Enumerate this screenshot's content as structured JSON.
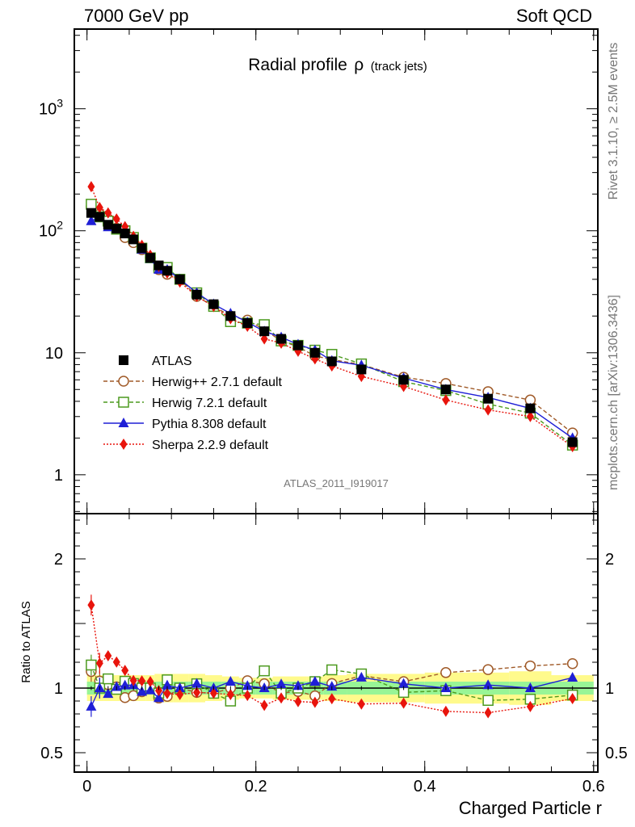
{
  "header": {
    "left": "7000 GeV pp",
    "right": "Soft QCD"
  },
  "side": {
    "rivet": "Rivet 3.1.10, ≥ 2.5M events",
    "mcplots": "mcplots.cern.ch [arXiv:1306.3436]"
  },
  "plot": {
    "title_main": "Radial profile",
    "title_rho": "ρ",
    "title_sub": "(track jets)",
    "watermark": "ATLAS_2011_I919017",
    "ratio_ylabel": "Ratio to ATLAS",
    "xlabel": "Charged Particle r"
  },
  "chart_data": {
    "type": "scatter",
    "title": "Radial profile ρ (track jets)",
    "xlabel": "Charged Particle r",
    "ylabel": "",
    "xlim": [
      -0.015,
      0.605
    ],
    "ylim": [
      0.48,
      4500
    ],
    "yscale": "log",
    "ratio_ylabel": "Ratio to ATLAS",
    "ratio_ylim": [
      0.35,
      2.35
    ],
    "x": [
      0.005,
      0.015,
      0.025,
      0.035,
      0.045,
      0.055,
      0.065,
      0.075,
      0.085,
      0.095,
      0.11,
      0.13,
      0.15,
      0.17,
      0.19,
      0.21,
      0.23,
      0.25,
      0.27,
      0.29,
      0.325,
      0.375,
      0.425,
      0.475,
      0.525,
      0.575
    ],
    "x_ticks": [
      {
        "v": 0,
        "label": "0"
      },
      {
        "v": 0.2,
        "label": "0.2"
      },
      {
        "v": 0.4,
        "label": "0.4"
      },
      {
        "v": 0.6,
        "label": "0.6"
      }
    ],
    "y_ticks": [
      {
        "v": 1,
        "label": "1",
        "sup": ""
      },
      {
        "v": 10,
        "label": "10",
        "sup": ""
      },
      {
        "v": 100,
        "label": "10",
        "sup": "2"
      },
      {
        "v": 1000,
        "label": "10",
        "sup": "3"
      }
    ],
    "ratio_ticks": [
      {
        "v": 0.5,
        "label": "0.5"
      },
      {
        "v": 1,
        "label": "1"
      },
      {
        "v": 2,
        "label": "2"
      }
    ],
    "legend_position": "middle-left",
    "series": [
      {
        "name": "ATLAS",
        "key": "atlas",
        "color": "#000000",
        "marker": "square-filled",
        "line": "none",
        "values": [
          140,
          130,
          112,
          104,
          95,
          85,
          72,
          60,
          52,
          47,
          40,
          30,
          25,
          20,
          17.5,
          15,
          13,
          11.5,
          10,
          8.5,
          7.3,
          6.0,
          5.0,
          4.2,
          3.5,
          1.85
        ],
        "band_inner": [
          0.05,
          0.05,
          0.05,
          0.05,
          0.05,
          0.05,
          0.05,
          0.05,
          0.05,
          0.05,
          0.05,
          0.05,
          0.05,
          0.05,
          0.05,
          0.05,
          0.05,
          0.05,
          0.05,
          0.05,
          0.05,
          0.05,
          0.05,
          0.05,
          0.05,
          0.05
        ],
        "band_outer": [
          0.1,
          0.1,
          0.1,
          0.1,
          0.1,
          0.1,
          0.1,
          0.1,
          0.11,
          0.11,
          0.11,
          0.11,
          0.1,
          0.09,
          0.08,
          0.08,
          0.09,
          0.09,
          0.09,
          0.1,
          0.11,
          0.11,
          0.12,
          0.12,
          0.13,
          0.1
        ]
      },
      {
        "name": "Herwig++ 2.7.1 default",
        "key": "herwigpp",
        "color": "#a05a28",
        "marker": "circle-open",
        "line": "dashed",
        "values": [
          158,
          137,
          115,
          105,
          88,
          80,
          70,
          60,
          48,
          44,
          40,
          29,
          24,
          20,
          18.5,
          15.5,
          12.5,
          11.2,
          9.4,
          8.8,
          8.0,
          6.3,
          5.6,
          4.8,
          4.1,
          2.2
        ]
      },
      {
        "name": "Herwig 7.2.1 default",
        "key": "herwig7",
        "color": "#4c9a1e",
        "marker": "square-open",
        "line": "dashed",
        "values": [
          165,
          130,
          120,
          103,
          100,
          88,
          72,
          60,
          50,
          50,
          40,
          31,
          24,
          18,
          17.5,
          17,
          12.5,
          11.5,
          10.5,
          9.7,
          8.1,
          5.8,
          4.9,
          3.8,
          3.2,
          1.75
        ]
      },
      {
        "name": "Pythia 8.308 default",
        "key": "pythia",
        "color": "#1f1fd6",
        "marker": "triangle-filled",
        "line": "solid",
        "values": [
          120,
          130,
          107,
          105,
          97,
          87,
          70,
          59,
          48,
          48,
          40,
          31,
          25,
          21,
          17.8,
          15,
          13.4,
          11.7,
          10.5,
          8.6,
          7.9,
          6.2,
          5.0,
          4.3,
          3.5,
          2.0
        ]
      },
      {
        "name": "Sherpa 2.2.9 default",
        "key": "sherpa",
        "color": "#e8140c",
        "marker": "diamond-filled",
        "line": "dotted",
        "values": [
          230,
          155,
          140,
          125,
          108,
          90,
          76,
          63,
          51,
          45,
          38,
          29,
          24,
          19,
          16.5,
          13,
          12,
          10.3,
          8.9,
          7.8,
          6.4,
          5.3,
          4.1,
          3.4,
          3.0,
          1.7
        ]
      }
    ],
    "legend": [
      {
        "label": "ATLAS",
        "key": "atlas"
      },
      {
        "label": "Herwig++ 2.7.1 default",
        "key": "herwigpp"
      },
      {
        "label": "Herwig 7.2.1 default",
        "key": "herwig7"
      },
      {
        "label": "Pythia 8.308 default",
        "key": "pythia"
      },
      {
        "label": "Sherpa 2.2.9 default",
        "key": "sherpa"
      }
    ]
  }
}
